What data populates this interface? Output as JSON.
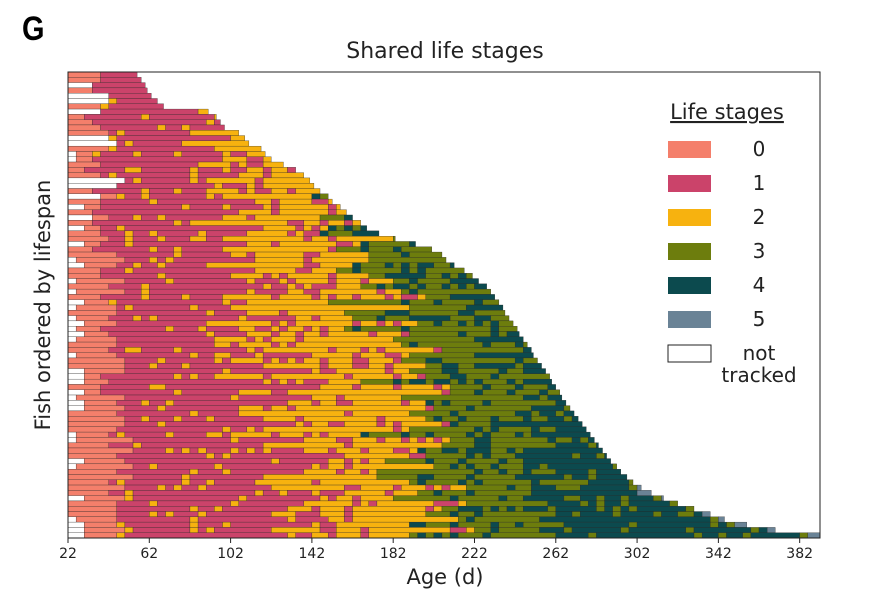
{
  "panel_label": "G",
  "chart_data": {
    "type": "stacked-timeline",
    "title": "Shared life stages",
    "xlabel": "Age (d)",
    "ylabel": "Fish ordered by lifespan",
    "xlim": [
      22,
      392
    ],
    "xticks": [
      22,
      62,
      102,
      142,
      182,
      222,
      262,
      302,
      342,
      382
    ],
    "legend": {
      "title": "Life stages",
      "placement": "right",
      "entries": [
        {
          "label": "0",
          "color": "#f47f6b"
        },
        {
          "label": "1",
          "color": "#cb436a"
        },
        {
          "label": "2",
          "color": "#f7b20f"
        },
        {
          "label": "3",
          "color": "#6d7d0d"
        },
        {
          "label": "4",
          "color": "#0c4a4e"
        },
        {
          "label": "5",
          "color": "#6a8396"
        },
        {
          "label": "not tracked",
          "color": "#ffffff"
        }
      ]
    },
    "n_fish": 88,
    "lifespan_range_days": [
      56,
      392
    ],
    "series": [
      {
        "name": "fish lifespans (days, short to long)",
        "values": [
          56,
          58,
          60,
          61,
          63,
          66,
          69,
          91,
          95,
          97,
          99,
          106,
          109,
          111,
          117,
          119,
          122,
          128,
          134,
          138,
          141,
          143,
          146,
          150,
          152,
          156,
          159,
          162,
          166,
          169,
          175,
          183,
          193,
          201,
          206,
          208,
          212,
          217,
          221,
          224,
          228,
          230,
          232,
          234,
          236,
          237,
          239,
          241,
          243,
          244,
          246,
          248,
          250,
          251,
          253,
          255,
          257,
          259,
          260,
          262,
          264,
          265,
          267,
          269,
          271,
          273,
          275,
          277,
          279,
          281,
          283,
          285,
          287,
          289,
          292,
          294,
          297,
          300,
          304,
          309,
          315,
          322,
          330,
          338,
          345,
          356,
          370,
          392
        ]
      }
    ]
  }
}
